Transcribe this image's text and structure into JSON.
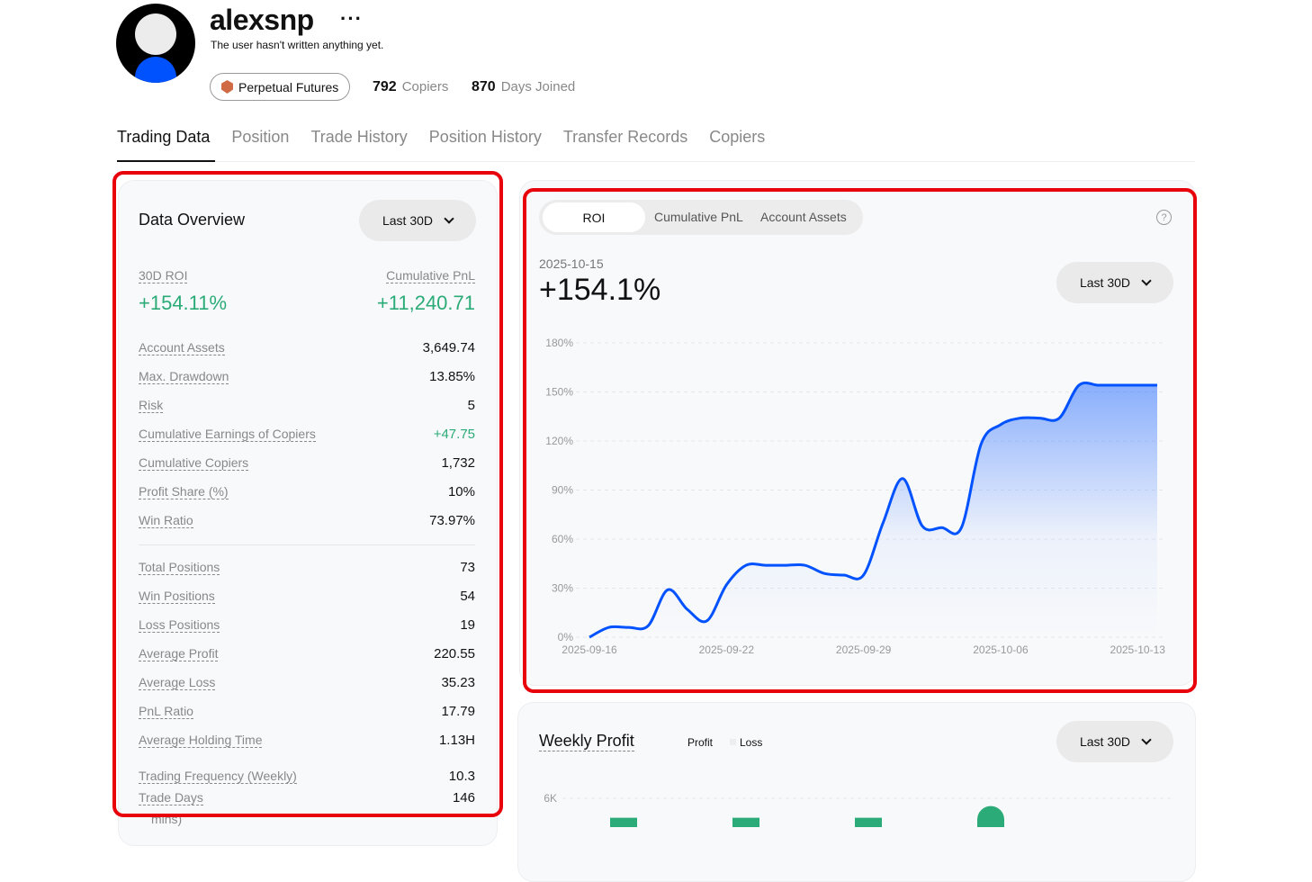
{
  "profile": {
    "username": "alexsnp",
    "more_icon": "ellipsis-icon",
    "bio": "The user hasn't written anything yet.",
    "badge": "Perpetual Futures",
    "copiers_value": "792",
    "copiers_label": "Copiers",
    "days_value": "870",
    "days_label": "Days Joined"
  },
  "tabs": [
    {
      "label": "Trading Data",
      "active": true
    },
    {
      "label": "Position"
    },
    {
      "label": "Trade History"
    },
    {
      "label": "Position History"
    },
    {
      "label": "Transfer Records"
    },
    {
      "label": "Copiers"
    }
  ],
  "overview": {
    "title": "Data Overview",
    "period": "Last 30D",
    "roi_label": "30D ROI",
    "roi_value": "+154.11%",
    "pnl_label": "Cumulative PnL",
    "pnl_value": "+11,240.71",
    "rows": [
      {
        "label": "Account Assets",
        "value": "3,649.74"
      },
      {
        "label": "Max. Drawdown",
        "value": "13.85%"
      },
      {
        "label": "Risk",
        "value": "5"
      },
      {
        "label": "Cumulative Earnings of Copiers",
        "value": "+47.75",
        "positive": true
      },
      {
        "label": "Cumulative Copiers",
        "value": "1,732"
      },
      {
        "label": "Profit Share (%)",
        "value": "10%"
      },
      {
        "label": "Win Ratio",
        "value": "73.97%"
      }
    ],
    "rows2": [
      {
        "label": "Total Positions",
        "value": "73"
      },
      {
        "label": "Win Positions",
        "value": "54"
      },
      {
        "label": "Loss Positions",
        "value": "19"
      },
      {
        "label": "Average Profit",
        "value": "220.55"
      },
      {
        "label": "Average Loss",
        "value": "35.23"
      },
      {
        "label": "PnL Ratio",
        "value": "17.79"
      },
      {
        "label": "Average Holding Time",
        "value": "1.13H"
      },
      {
        "label": "Trading Frequency (Weekly)",
        "value": "10.3"
      },
      {
        "label": "Trade Days",
        "value": "146"
      }
    ],
    "cut_text": "mins)"
  },
  "roi_panel": {
    "tabs": [
      "ROI",
      "Cumulative PnL",
      "Account Assets"
    ],
    "active_tab": "ROI",
    "date": "2025-10-15",
    "value": "+154.1%",
    "period": "Last 30D",
    "help_icon": "question-circle-icon"
  },
  "weekly": {
    "title": "Weekly Profit",
    "legend_profit": "Profit",
    "legend_loss": "Loss",
    "period": "Last 30D"
  },
  "colors": {
    "accent": "#0052ff",
    "positive": "#2bab77",
    "highlight": "#e8000b"
  },
  "chart_data": [
    {
      "type": "area",
      "ylabel": "",
      "xlabel": "",
      "ylim": [
        0,
        180
      ],
      "grid": true,
      "yticks": [
        "0%",
        "30%",
        "60%",
        "90%",
        "120%",
        "150%",
        "180%"
      ],
      "xtick_labels": [
        "2025-09-16",
        "2025-09-22",
        "2025-09-29",
        "2025-10-06",
        "2025-10-13"
      ],
      "series": [
        {
          "values": [
            0,
            6,
            6,
            7,
            29,
            17,
            10,
            32,
            44,
            44,
            44,
            44,
            39,
            38,
            38,
            70,
            97,
            68,
            67,
            67,
            118,
            130,
            134,
            134,
            134,
            154.1,
            154.1,
            154.1,
            154.1,
            154.1
          ]
        }
      ]
    },
    {
      "type": "bar",
      "yticks": [
        "6K"
      ],
      "ylim": [
        0,
        6
      ],
      "series": [
        {
          "name": "Profit",
          "values": [
            5.0,
            5.0,
            5.0,
            5.6
          ]
        }
      ]
    }
  ]
}
